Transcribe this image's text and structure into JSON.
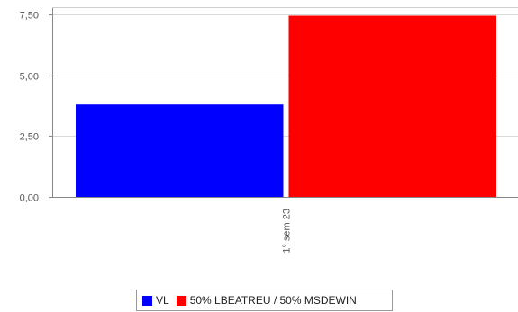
{
  "chart_data": {
    "type": "bar",
    "categories": [
      "1° sem  23"
    ],
    "series": [
      {
        "name": "VL",
        "values": [
          3.8
        ],
        "color": "#0000ff"
      },
      {
        "name": "50% LBEATREU / 50% MSDEWIN",
        "values": [
          7.45
        ],
        "color": "#ff0000"
      }
    ],
    "title": "",
    "xlabel": "",
    "ylabel": "",
    "ylim": [
      0,
      7.8
    ],
    "yticks": [
      {
        "value": 0,
        "label": "0,00"
      },
      {
        "value": 2.5,
        "label": "2,50"
      },
      {
        "value": 5,
        "label": "5,00"
      },
      {
        "value": 7.5,
        "label": "7,50"
      }
    ],
    "grid": true,
    "legend_position": "bottom-center"
  },
  "legend": {
    "items": [
      {
        "label": "VL",
        "color": "#0000ff"
      },
      {
        "label": "50% LBEATREU / 50% MSDEWIN",
        "color": "#ff0000"
      }
    ]
  }
}
